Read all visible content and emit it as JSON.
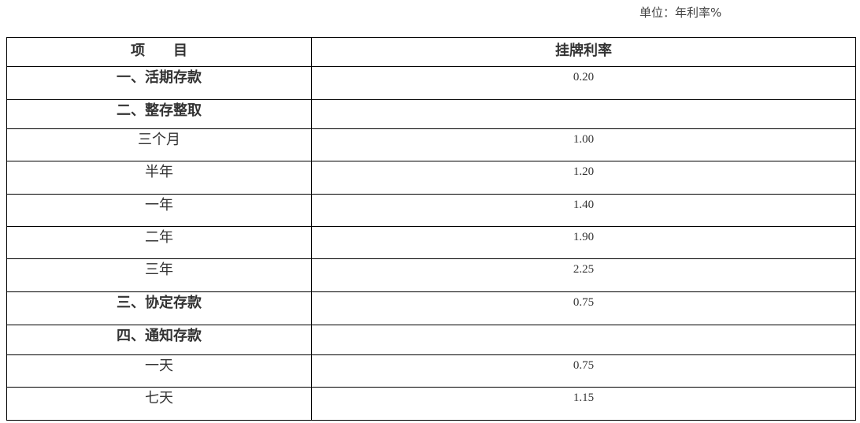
{
  "unit_note": "单位：年利率%",
  "table": {
    "headers": [
      "项　　目",
      "挂牌利率"
    ],
    "rows": [
      {
        "item": "一、活期存款",
        "rate": "0.20",
        "section": true
      },
      {
        "item": "二、整存整取",
        "rate": "",
        "section": true
      },
      {
        "item": "三个月",
        "rate": "1.00",
        "section": false
      },
      {
        "item": "半年",
        "rate": "1.20",
        "section": false
      },
      {
        "item": "一年",
        "rate": "1.40",
        "section": false
      },
      {
        "item": "二年",
        "rate": "1.90",
        "section": false
      },
      {
        "item": "三年",
        "rate": "2.25",
        "section": false
      },
      {
        "item": "三、协定存款",
        "rate": "0.75",
        "section": true
      },
      {
        "item": "四、通知存款",
        "rate": "",
        "section": true
      },
      {
        "item": "一天",
        "rate": "0.75",
        "section": false
      },
      {
        "item": "七天",
        "rate": "1.15",
        "section": false
      }
    ]
  }
}
